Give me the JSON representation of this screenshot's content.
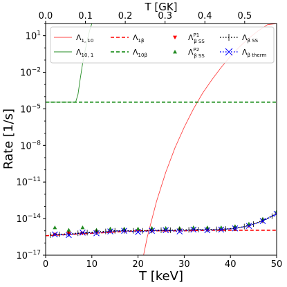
{
  "chart_data": {
    "type": "line",
    "xlabel": "T [keV]",
    "ylabel": "Rate [1/s]",
    "top_xlabel": "T [GK]",
    "xlim": [
      0,
      50
    ],
    "ylim_log10": [
      -17,
      2
    ],
    "y_scale": "log",
    "x_ticks": [
      "0",
      "10",
      "20",
      "30",
      "40",
      "50"
    ],
    "y_ticks": [
      {
        "base": "10",
        "exp": "1",
        "v": 1
      },
      {
        "base": "10",
        "exp": "−2",
        "v": -2
      },
      {
        "base": "10",
        "exp": "−5",
        "v": -5
      },
      {
        "base": "10",
        "exp": "−8",
        "v": -8
      },
      {
        "base": "10",
        "exp": "−11",
        "v": -11
      },
      {
        "base": "10",
        "exp": "−14",
        "v": -14
      },
      {
        "base": "10",
        "exp": "−17",
        "v": -17
      }
    ],
    "top_ticks": [
      "0.0",
      "0.1",
      "0.2",
      "0.3",
      "0.4",
      "0.5"
    ],
    "legend_placement": "top",
    "series": [
      {
        "name": "Λ",
        "sub": "1, 10",
        "sup": "",
        "color": "#ff4444",
        "style": "solid",
        "x": [
          21.2,
          22,
          24,
          26,
          28,
          30,
          32,
          34,
          36,
          38,
          40,
          42,
          44,
          46,
          48,
          50
        ],
        "log10_y": [
          -17,
          -15.5,
          -12.6,
          -10.2,
          -8.2,
          -6.5,
          -5.0,
          -3.7,
          -2.6,
          -1.6,
          -0.7,
          0.1,
          0.8,
          1.4,
          1.9,
          2
        ]
      },
      {
        "name": "Λ",
        "sub": "10, 1",
        "sup": "",
        "color": "#228b22",
        "style": "solid",
        "x": [
          0,
          6.5,
          7,
          7.5,
          8,
          8.5,
          9,
          9.5,
          10
        ],
        "log10_y": [
          -4.45,
          -4.45,
          -3.8,
          -2.5,
          -1.3,
          -0.3,
          0.6,
          1.4,
          2
        ]
      },
      {
        "name": "Λ",
        "sub": "1β",
        "sup": "",
        "color": "#ff0000",
        "style": "dashed",
        "x": [
          0,
          5,
          10,
          15,
          20,
          25,
          30,
          35,
          40,
          45,
          50
        ],
        "log10_y": [
          -15.4,
          -15.3,
          -15.2,
          -15.1,
          -15.0,
          -15.0,
          -15.0,
          -14.95,
          -14.95,
          -14.95,
          -14.95
        ]
      },
      {
        "name": "Λ",
        "sub": "10β",
        "sup": "",
        "color": "#008000",
        "style": "dashed",
        "x": [
          0,
          50
        ],
        "log10_y": [
          -4.45,
          -4.45
        ]
      },
      {
        "name": "Λ",
        "sub": "β SS",
        "sup": "P1",
        "color": "#ff0000",
        "style": "marker-triangle-down",
        "x": [
          2,
          5,
          8,
          11,
          14,
          17,
          20,
          23,
          26,
          29,
          32,
          35,
          38,
          41,
          44,
          47,
          50
        ],
        "log10_y": [
          -15.3,
          -15.2,
          -15.2,
          -15.1,
          -15.05,
          -15.0,
          -15.0,
          -15.0,
          -14.95,
          -14.95,
          -14.9,
          -14.9,
          -14.9,
          -14.8,
          -14.6,
          -14.2,
          -13.6
        ]
      },
      {
        "name": "Λ",
        "sub": "β SS",
        "sup": "P2",
        "color": "#228b22",
        "style": "marker-triangle-up",
        "x": [
          2,
          5,
          8,
          11,
          14,
          17,
          20,
          23,
          26,
          29,
          32,
          35,
          38,
          41,
          44,
          47,
          50
        ],
        "log10_y": [
          -14.9,
          -15.1,
          -14.9,
          -15.1,
          -15.0,
          -15.0,
          -15.0,
          -14.95,
          -14.95,
          -14.95,
          -14.9,
          -14.9,
          -14.9,
          -14.8,
          -14.6,
          -14.2,
          -13.6
        ]
      },
      {
        "name": "Λ",
        "sub": "β SS",
        "sup": "",
        "color": "#000000",
        "style": "dotted-errorbar",
        "x": [
          1,
          3,
          5,
          7,
          9,
          11,
          13,
          15,
          17,
          19,
          21,
          23,
          25,
          27,
          29,
          31,
          33,
          35,
          37,
          39,
          41,
          43,
          45,
          47,
          49,
          50
        ],
        "log10_y": [
          -15.35,
          -15.3,
          -15.25,
          -15.2,
          -15.15,
          -15.1,
          -15.05,
          -15.0,
          -15.0,
          -15.0,
          -15.0,
          -14.97,
          -14.95,
          -14.95,
          -14.93,
          -14.92,
          -14.9,
          -14.9,
          -14.88,
          -14.85,
          -14.8,
          -14.65,
          -14.45,
          -14.15,
          -13.8,
          -13.6
        ]
      },
      {
        "name": "Λ",
        "sub": "β therm",
        "sup": "",
        "color": "#0000ff",
        "style": "dotted-x",
        "x": [
          2,
          5,
          8,
          11,
          14,
          17,
          20,
          23,
          26,
          29,
          32,
          35,
          38,
          41,
          44,
          47,
          50
        ],
        "log10_y": [
          -15.3,
          -15.35,
          -15.15,
          -15.2,
          -15.05,
          -15.0,
          -15.1,
          -15.0,
          -14.95,
          -15.05,
          -14.9,
          -14.95,
          -14.9,
          -14.8,
          -14.6,
          -14.2,
          -13.6
        ]
      }
    ]
  }
}
